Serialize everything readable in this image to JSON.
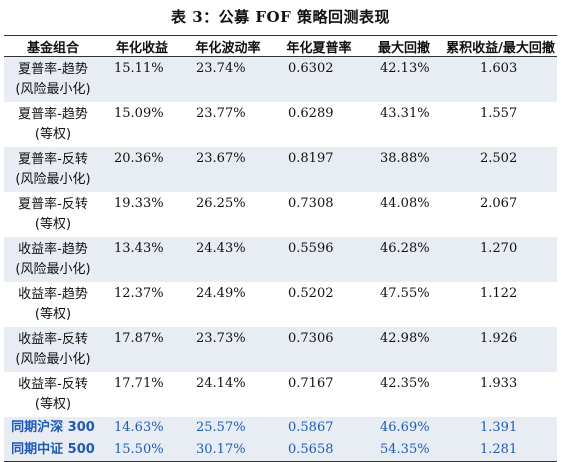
{
  "caption": "表 3：公募 FOF 策略回测表现",
  "headers": [
    "基金组合",
    "年化收益",
    "年化波动率",
    "年化夏普率",
    "最大回撤",
    "累积收益/最大回撤"
  ],
  "rows": [
    {
      "name1": "夏普率-趋势",
      "name2": "(风险最小化)",
      "v": [
        "15.11%",
        "23.74%",
        "0.6302",
        "42.13%",
        "1.603"
      ]
    },
    {
      "name1": "夏普率-趋势",
      "name2": "(等权)",
      "v": [
        "15.09%",
        "23.77%",
        "0.6289",
        "43.31%",
        "1.557"
      ]
    },
    {
      "name1": "夏普率-反转",
      "name2": "(风险最小化)",
      "v": [
        "20.36%",
        "23.67%",
        "0.8197",
        "38.88%",
        "2.502"
      ]
    },
    {
      "name1": "夏普率-反转",
      "name2": "(等权)",
      "v": [
        "19.33%",
        "26.25%",
        "0.7308",
        "44.08%",
        "2.067"
      ]
    },
    {
      "name1": "收益率-趋势",
      "name2": "(风险最小化)",
      "v": [
        "13.43%",
        "24.43%",
        "0.5596",
        "46.28%",
        "1.270"
      ]
    },
    {
      "name1": "收益率-趋势",
      "name2": "(等权)",
      "v": [
        "12.37%",
        "24.49%",
        "0.5202",
        "47.55%",
        "1.122"
      ]
    },
    {
      "name1": "收益率-反转",
      "name2": "(风险最小化)",
      "v": [
        "17.87%",
        "23.73%",
        "0.7306",
        "42.98%",
        "1.926"
      ]
    },
    {
      "name1": "收益率-反转",
      "name2": "(等权)",
      "v": [
        "17.71%",
        "24.14%",
        "0.7167",
        "42.35%",
        "1.933"
      ]
    }
  ],
  "benchmarks": [
    {
      "name": "同期沪深 300",
      "v": [
        "14.63%",
        "25.57%",
        "0.5867",
        "46.69%",
        "1.391"
      ]
    },
    {
      "name": "同期中证 500",
      "v": [
        "15.50%",
        "30.17%",
        "0.5658",
        "54.35%",
        "1.281"
      ]
    }
  ],
  "colors": {
    "benchmark_text": "#1f5bb5",
    "shade": "#e8ecf3"
  }
}
